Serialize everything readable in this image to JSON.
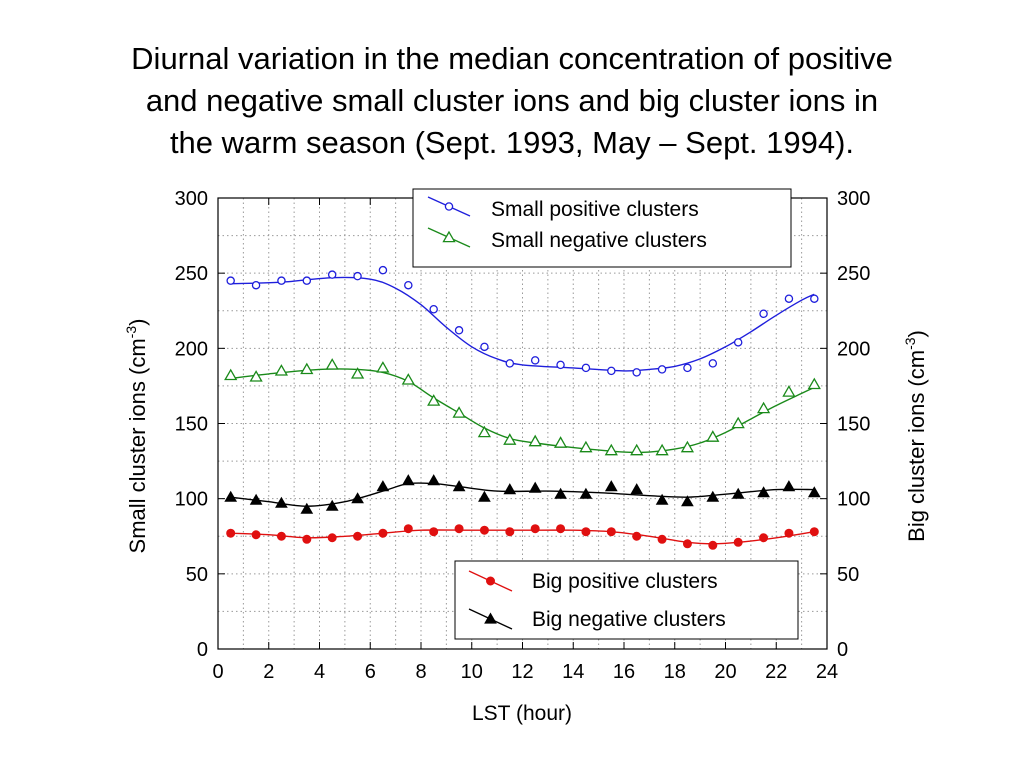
{
  "title_lines": [
    "Diurnal variation in the median concentration of positive",
    "and negative small cluster ions and big cluster ions in",
    "the warm season (Sept. 1993, May – Sept. 1994)."
  ],
  "chart_data": {
    "type": "line",
    "xlabel": "LST  (hour)",
    "ylabel_left": "Small cluster ions  (cm",
    "ylabel_right": "Big cluster ions  (cm",
    "ylabel_sup": "-3",
    "ylabel_close": ")",
    "xlim": [
      0,
      24
    ],
    "ylim": [
      0,
      300
    ],
    "xticks": [
      "0",
      "2",
      "4",
      "6",
      "8",
      "10",
      "12",
      "14",
      "16",
      "18",
      "20",
      "22",
      "24"
    ],
    "yticks": [
      "0",
      "50",
      "100",
      "150",
      "200",
      "250",
      "300"
    ],
    "grid": true,
    "x": [
      0.5,
      1.5,
      2.5,
      3.5,
      4.5,
      5.5,
      6.5,
      7.5,
      8.5,
      9.5,
      10.5,
      11.5,
      12.5,
      13.5,
      14.5,
      15.5,
      16.5,
      17.5,
      18.5,
      19.5,
      20.5,
      21.5,
      22.5,
      23.5
    ],
    "series": [
      {
        "name": "Small positive clusters",
        "axis": "left",
        "marker": "open-circle",
        "color": "#1f1fdc",
        "values": [
          245,
          242,
          245,
          245,
          249,
          248,
          252,
          242,
          226,
          212,
          201,
          190,
          192,
          189,
          187,
          185,
          184,
          186,
          187,
          190,
          204,
          223,
          233,
          233
        ],
        "fit": [
          [
            0.5,
            243
          ],
          [
            2.5,
            244
          ],
          [
            4.5,
            247
          ],
          [
            6,
            246
          ],
          [
            7,
            240
          ],
          [
            8,
            229
          ],
          [
            9,
            214
          ],
          [
            10,
            201
          ],
          [
            11,
            193
          ],
          [
            12,
            189
          ],
          [
            14,
            187
          ],
          [
            16,
            185
          ],
          [
            17,
            186
          ],
          [
            18,
            188
          ],
          [
            19,
            193
          ],
          [
            20,
            201
          ],
          [
            21,
            211
          ],
          [
            22,
            222
          ],
          [
            23,
            232
          ],
          [
            23.5,
            236
          ]
        ]
      },
      {
        "name": "Small negative  clusters",
        "axis": "left",
        "marker": "open-triangle",
        "color": "#1a8a1a",
        "values": [
          182,
          181,
          185,
          186,
          189,
          183,
          187,
          179,
          165,
          157,
          144,
          139,
          138,
          137,
          134,
          132,
          132,
          132,
          134,
          141,
          150,
          160,
          171,
          176
        ],
        "fit": [
          [
            0.5,
            180
          ],
          [
            2,
            183
          ],
          [
            4,
            186
          ],
          [
            5.5,
            186
          ],
          [
            6.5,
            184
          ],
          [
            7.5,
            178
          ],
          [
            8.5,
            167
          ],
          [
            9.5,
            157
          ],
          [
            10.5,
            147
          ],
          [
            11.5,
            140
          ],
          [
            12.5,
            137
          ],
          [
            14,
            134
          ],
          [
            16,
            131
          ],
          [
            17,
            131
          ],
          [
            18,
            133
          ],
          [
            19,
            137
          ],
          [
            20,
            144
          ],
          [
            21,
            153
          ],
          [
            22,
            162
          ],
          [
            23,
            170
          ],
          [
            23.5,
            174
          ]
        ]
      },
      {
        "name": "Big positive clusters",
        "axis": "right",
        "marker": "filled-circle",
        "color": "#e01010",
        "values": [
          77,
          76,
          75,
          73,
          74,
          75,
          77,
          80,
          78,
          80,
          79,
          78,
          80,
          80,
          78,
          78,
          75,
          73,
          70,
          69,
          71,
          74,
          77,
          78
        ],
        "fit": [
          [
            0.5,
            77
          ],
          [
            2,
            76
          ],
          [
            3.5,
            74
          ],
          [
            5,
            75
          ],
          [
            6.5,
            77
          ],
          [
            8,
            79
          ],
          [
            10,
            79
          ],
          [
            12,
            79
          ],
          [
            14,
            79
          ],
          [
            15.5,
            78
          ],
          [
            17,
            75
          ],
          [
            18.5,
            71
          ],
          [
            19.5,
            70
          ],
          [
            20.5,
            71
          ],
          [
            22,
            74
          ],
          [
            23.5,
            78
          ]
        ]
      },
      {
        "name": "Big negative clusters",
        "axis": "right",
        "marker": "filled-triangle",
        "color": "#000000",
        "values": [
          101,
          99,
          97,
          93,
          95,
          100,
          108,
          112,
          112,
          108,
          101,
          106,
          107,
          103,
          103,
          108,
          106,
          99,
          98,
          101,
          103,
          104,
          108,
          104
        ],
        "fit": [
          [
            0.5,
            101
          ],
          [
            2,
            98
          ],
          [
            3.5,
            95
          ],
          [
            5,
            98
          ],
          [
            6.5,
            105
          ],
          [
            7.5,
            110
          ],
          [
            8.5,
            110
          ],
          [
            9.5,
            108
          ],
          [
            11,
            105
          ],
          [
            13,
            105
          ],
          [
            15,
            104
          ],
          [
            17,
            102
          ],
          [
            18.5,
            101
          ],
          [
            20,
            103
          ],
          [
            22,
            106
          ],
          [
            23.5,
            106
          ]
        ]
      }
    ],
    "legend_top": {
      "position": "top-center",
      "entries": [
        "Small positive clusters",
        "Small negative  clusters"
      ]
    },
    "legend_bottom": {
      "position": "bottom-center",
      "entries": [
        "Big positive clusters",
        "Big negative clusters"
      ]
    },
    "colors": {
      "axis": "#000000",
      "grid": "#9a9a9a"
    }
  }
}
